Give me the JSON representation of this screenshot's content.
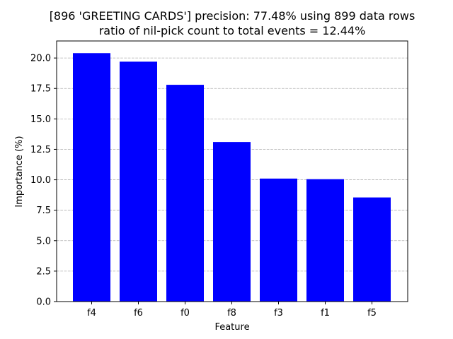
{
  "chart_data": {
    "type": "bar",
    "title_lines": [
      "[896 'GREETING CARDS'] precision: 77.48% using 899 data rows",
      "ratio of nil-pick count to total events = 12.44%"
    ],
    "xlabel": "Feature",
    "ylabel": "Importance (%)",
    "categories": [
      "f4",
      "f6",
      "f0",
      "f8",
      "f3",
      "f1",
      "f5"
    ],
    "values": [
      20.4,
      19.7,
      17.8,
      13.1,
      10.1,
      10.05,
      8.55
    ],
    "ylim": [
      0,
      21.4
    ],
    "yticks": [
      "0.0",
      "2.5",
      "5.0",
      "7.5",
      "10.0",
      "12.5",
      "15.0",
      "17.5",
      "20.0"
    ],
    "grid": "y-dashed",
    "bar_color": "#0000ff",
    "grid_color": "#b0b0b0"
  }
}
